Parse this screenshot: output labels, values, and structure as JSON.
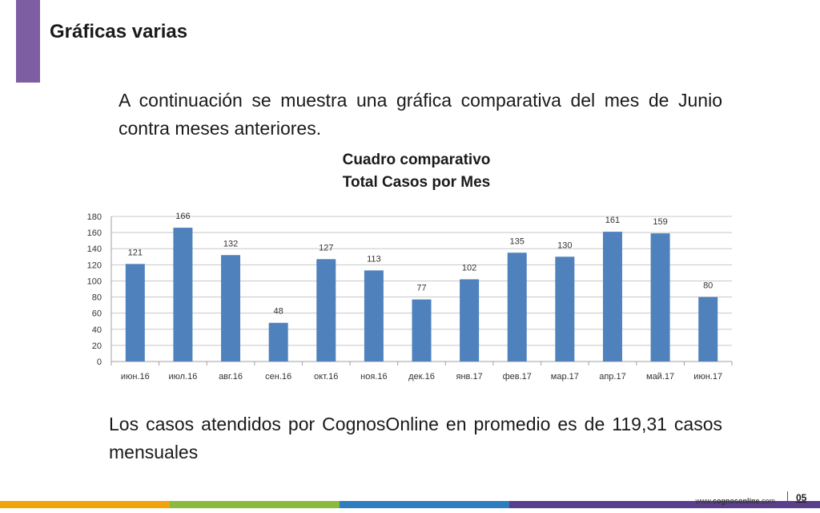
{
  "slide": {
    "title": "Gráficas varias",
    "intro": "A continuación se muestra una gráfica comparativa del mes de Junio contra meses anteriores.",
    "conclusion": "Los casos atendidos por CognosOnline en promedio es de 119,31 casos mensuales",
    "accent_color": "#7e5ea3"
  },
  "footer": {
    "url_prefix": "www.",
    "url_brand": "cognosonline",
    "url_suffix": ".com",
    "page_number": "05",
    "strip_colors": [
      "#f0a30a",
      "#8bb93b",
      "#2e7dbf",
      "#5a3f8c"
    ]
  },
  "chart_data": {
    "type": "bar",
    "title": "Cuadro comparativo",
    "subtitle": "Total Casos por Mes",
    "categories": [
      "июн.16",
      "июл.16",
      "авг.16",
      "сен.16",
      "окт.16",
      "ноя.16",
      "дек.16",
      "янв.17",
      "фев.17",
      "мар.17",
      "апр.17",
      "май.17",
      "июн.17"
    ],
    "series": [
      {
        "values": [
          121,
          166,
          132,
          48,
          127,
          113,
          77,
          102,
          135,
          130,
          161,
          159,
          80
        ]
      }
    ],
    "ylim": [
      0,
      180
    ],
    "yticks": [
      0,
      20,
      40,
      60,
      80,
      100,
      120,
      140,
      160,
      180
    ],
    "grid": true,
    "data_labels": true,
    "bar_color": "#4f81bd"
  }
}
